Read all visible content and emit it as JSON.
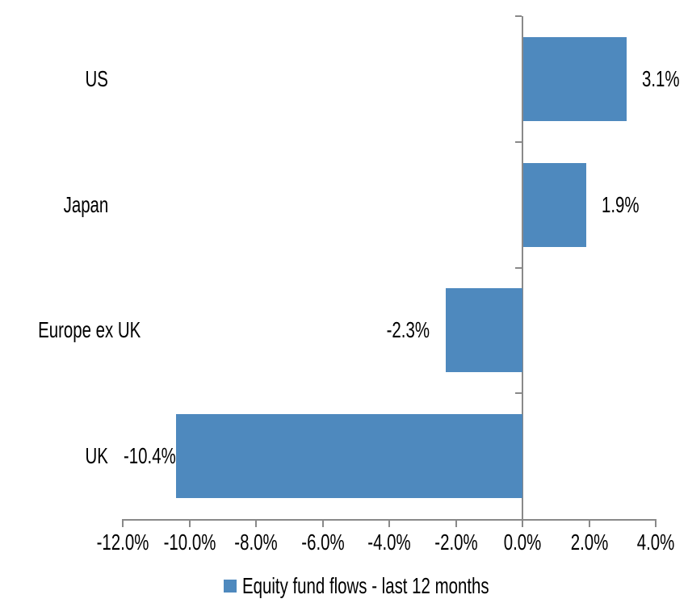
{
  "chart_data": {
    "type": "bar",
    "orientation": "horizontal",
    "title": "",
    "categories": [
      "US",
      "Japan",
      "Europe ex UK",
      "UK"
    ],
    "values": [
      3.1,
      1.9,
      -2.3,
      -10.4
    ],
    "data_labels": [
      "3.1%",
      "1.9%",
      "-2.3%",
      "-10.4%"
    ],
    "xlim": [
      -12,
      4
    ],
    "xticks": [
      -12,
      -10,
      -8,
      -6,
      -4,
      -2,
      0,
      2,
      4
    ],
    "xtick_labels": [
      "-12.0%",
      "-10.0%",
      "-8.0%",
      "-6.0%",
      "-4.0%",
      "-2.0%",
      "0.0%",
      "2.0%",
      "4.0%"
    ],
    "grid": false,
    "legend_position": "bottom",
    "legend": [
      {
        "label": "Equity fund flows - last 12 months",
        "color": "#4e89be"
      }
    ],
    "colors": {
      "bar": "#4e89be",
      "axis": "#898989",
      "text": "#000000",
      "background": "#ffffff"
    }
  }
}
